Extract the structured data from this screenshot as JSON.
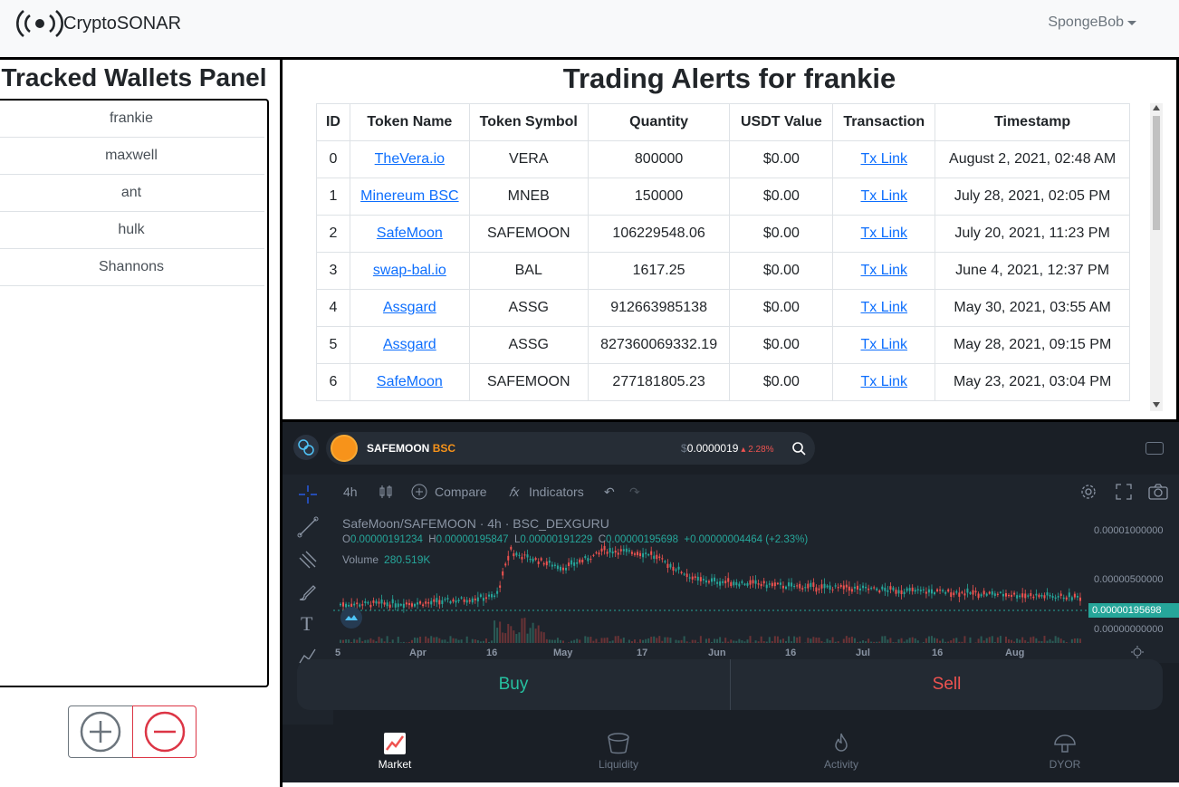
{
  "navbar": {
    "brand": "CryptoSONAR",
    "user": "SpongeBob"
  },
  "wallets_panel": {
    "title": "Tracked Wallets Panel",
    "wallets": [
      "frankie",
      "maxwell",
      "ant",
      "hulk",
      "Shannons"
    ]
  },
  "alerts": {
    "title": "Trading Alerts for frankie",
    "columns": [
      "ID",
      "Token Name",
      "Token Symbol",
      "Quantity",
      "USDT Value",
      "Transaction",
      "Timestamp"
    ],
    "rows": [
      {
        "id": "0",
        "name": "TheVera.io",
        "symbol": "VERA",
        "quantity": "800000",
        "usdt": "$0.00",
        "tx": "Tx Link",
        "time": "August 2, 2021, 02:48 AM"
      },
      {
        "id": "1",
        "name": "Minereum BSC",
        "symbol": "MNEB",
        "quantity": "150000",
        "usdt": "$0.00",
        "tx": "Tx Link",
        "time": "July 28, 2021, 02:05 PM"
      },
      {
        "id": "2",
        "name": "SafeMoon",
        "symbol": "SAFEMOON",
        "quantity": "106229548.06",
        "usdt": "$0.00",
        "tx": "Tx Link",
        "time": "July 20, 2021, 11:23 PM"
      },
      {
        "id": "3",
        "name": "swap-bal.io",
        "symbol": "BAL",
        "quantity": "1617.25",
        "usdt": "$0.00",
        "tx": "Tx Link",
        "time": "June 4, 2021, 12:37 PM"
      },
      {
        "id": "4",
        "name": "Assgard",
        "symbol": "ASSG",
        "quantity": "912663985138",
        "usdt": "$0.00",
        "tx": "Tx Link",
        "time": "May 30, 2021, 03:55 AM"
      },
      {
        "id": "5",
        "name": "Assgard",
        "symbol": "ASSG",
        "quantity": "827360069332.19",
        "usdt": "$0.00",
        "tx": "Tx Link",
        "time": "May 28, 2021, 09:15 PM"
      },
      {
        "id": "6",
        "name": "SafeMoon",
        "symbol": "SAFEMOON",
        "quantity": "277181805.23",
        "usdt": "$0.00",
        "tx": "Tx Link",
        "time": "May 23, 2021, 03:04 PM"
      }
    ]
  },
  "widget": {
    "token": "SAFEMOON",
    "chain": "BSC",
    "dollar": "$",
    "price": "0.0000019",
    "change": "▴ 2.28%",
    "toolbar": {
      "interval": "4h",
      "compare": "Compare",
      "indicators": "Indicators"
    },
    "chart_title": "SafeMoon/SAFEMOON · 4h · BSC_DEXGURU",
    "ohlc": {
      "o_label": "O",
      "o": "0.00000191234",
      "h_label": "H",
      "h": "0.00000195847",
      "l_label": "L",
      "l": "0.00000191229",
      "c_label": "C",
      "c": "0.00000195698",
      "change": "+0.00000004464 (+2.33%)"
    },
    "volume_label": "Volume",
    "volume": "280.519K",
    "price_axis": [
      "0.00001000000",
      "0.00000500000",
      "0.00000000000"
    ],
    "last_price": "0.00000195698",
    "date_axis": [
      "5",
      "Apr",
      "16",
      "May",
      "17",
      "Jun",
      "16",
      "Jul",
      "16",
      "Aug"
    ],
    "buy": "Buy",
    "sell": "Sell",
    "nav": [
      "Market",
      "Liquidity",
      "Activity",
      "DYOR"
    ]
  },
  "colors": {
    "up": "#26a69a",
    "down": "#ef5350",
    "link": "#0d6efd",
    "accent_orange": "#f7931a"
  }
}
